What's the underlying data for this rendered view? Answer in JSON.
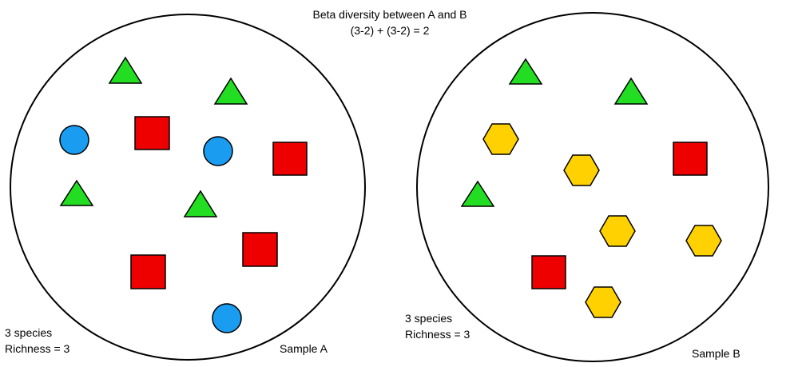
{
  "header": {
    "title": "Beta diversity between A and B",
    "formula": "(3-2) + (3-2) = 2"
  },
  "colors": {
    "triangle": "#22dd22",
    "circle": "#1a9cf0",
    "square": "#ee0000",
    "hexagon": "#ffd100",
    "outline": "#000000"
  },
  "sample_a": {
    "name": "Sample A",
    "species_text": "3 species",
    "richness_text": "Richness = 3",
    "species": [
      "triangle",
      "circle",
      "square"
    ]
  },
  "sample_b": {
    "name": "Sample B",
    "species_text": "3 species",
    "richness_text": "Richness = 3",
    "species": [
      "triangle",
      "square",
      "hexagon"
    ]
  }
}
